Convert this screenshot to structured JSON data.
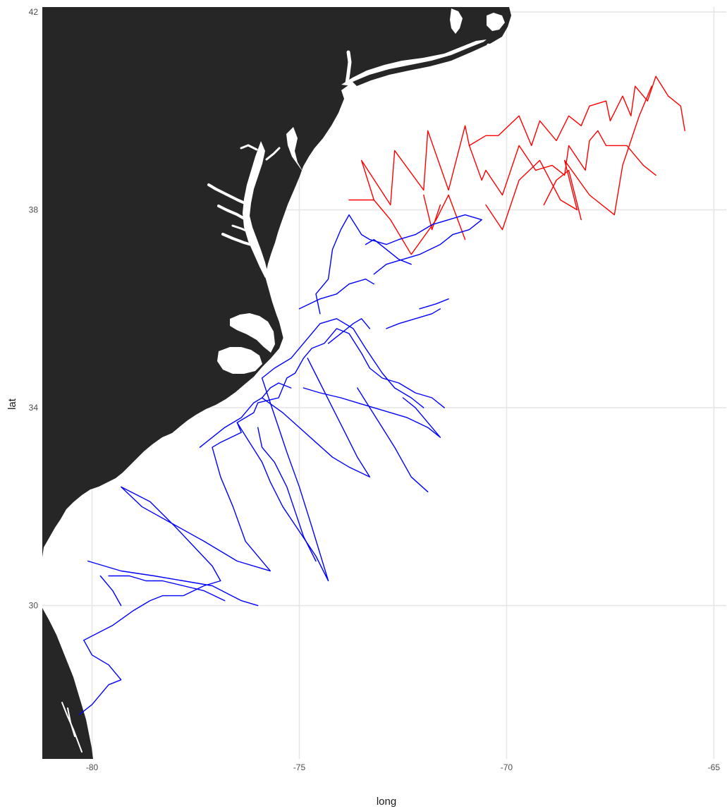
{
  "chart_data": {
    "type": "map",
    "xlabel": "long",
    "ylabel": "lat",
    "xlim": [
      -81.2,
      -64.7
    ],
    "ylim": [
      26.9,
      42.1
    ],
    "x_ticks": [
      -80,
      -75,
      -70,
      -65
    ],
    "y_ticks": [
      30,
      34,
      38,
      42
    ],
    "x_tick_labels": [
      "-80",
      "-75",
      "-70",
      "-65"
    ],
    "y_tick_labels": [
      "30",
      "34",
      "38",
      "42"
    ],
    "grid": true,
    "land_color": "#262626",
    "series": [
      {
        "color": "#ff0000",
        "segments": [
          [
            [
              -73.8,
              38.2
            ],
            [
              -73.2,
              38.2
            ],
            [
              -73.5,
              39.0
            ],
            [
              -72.8,
              38.1
            ],
            [
              -72.7,
              39.2
            ],
            [
              -72.0,
              38.4
            ],
            [
              -71.9,
              39.6
            ],
            [
              -71.4,
              38.4
            ],
            [
              -71.0,
              39.7
            ],
            [
              -70.9,
              39.3
            ],
            [
              -70.5,
              39.5
            ],
            [
              -70.2,
              39.5
            ],
            [
              -69.7,
              39.9
            ],
            [
              -69.4,
              39.3
            ],
            [
              -69.2,
              39.8
            ],
            [
              -68.8,
              39.4
            ],
            [
              -68.5,
              39.9
            ],
            [
              -68.2,
              39.7
            ],
            [
              -68.0,
              40.1
            ],
            [
              -67.6,
              40.2
            ],
            [
              -67.5,
              39.8
            ],
            [
              -67.2,
              40.3
            ],
            [
              -67.0,
              39.9
            ],
            [
              -66.9,
              40.5
            ],
            [
              -66.6,
              40.2
            ],
            [
              -66.4,
              40.7
            ],
            [
              -66.1,
              40.3
            ],
            [
              -65.8,
              40.1
            ],
            [
              -65.7,
              39.6
            ]
          ],
          [
            [
              -70.9,
              39.3
            ],
            [
              -70.6,
              38.6
            ],
            [
              -70.5,
              38.8
            ],
            [
              -70.1,
              38.3
            ],
            [
              -69.7,
              39.3
            ],
            [
              -69.3,
              38.8
            ],
            [
              -68.9,
              38.9
            ],
            [
              -68.6,
              38.7
            ],
            [
              -68.5,
              39.3
            ],
            [
              -68.1,
              38.8
            ],
            [
              -68.0,
              39.4
            ],
            [
              -67.8,
              39.6
            ],
            [
              -67.6,
              39.3
            ],
            [
              -67.1,
              39.3
            ],
            [
              -66.7,
              38.9
            ],
            [
              -66.4,
              38.7
            ]
          ],
          [
            [
              -73.2,
              38.2
            ],
            [
              -72.8,
              37.8
            ],
            [
              -72.3,
              37.1
            ],
            [
              -71.7,
              37.8
            ],
            [
              -71.4,
              38.3
            ],
            [
              -71.0,
              37.4
            ]
          ],
          [
            [
              -70.5,
              38.1
            ],
            [
              -70.1,
              37.6
            ],
            [
              -69.7,
              38.6
            ],
            [
              -69.2,
              39.0
            ],
            [
              -68.7,
              38.2
            ],
            [
              -68.3,
              38.0
            ],
            [
              -68.6,
              39.0
            ],
            [
              -68.0,
              38.3
            ],
            [
              -67.4,
              37.9
            ],
            [
              -67.2,
              38.9
            ],
            [
              -66.8,
              39.9
            ],
            [
              -66.5,
              40.5
            ]
          ],
          [
            [
              -72.0,
              38.3
            ],
            [
              -71.8,
              37.6
            ],
            [
              -71.6,
              38.1
            ]
          ],
          [
            [
              -69.1,
              38.1
            ],
            [
              -68.8,
              38.6
            ],
            [
              -68.5,
              38.8
            ],
            [
              -68.2,
              37.8
            ]
          ]
        ]
      },
      {
        "color": "#0000ff",
        "segments": [
          [
            [
              -80.3,
              27.8
            ],
            [
              -80.0,
              28.0
            ],
            [
              -79.6,
              28.4
            ],
            [
              -79.3,
              28.5
            ],
            [
              -79.6,
              28.8
            ],
            [
              -80.0,
              29.0
            ],
            [
              -80.2,
              29.3
            ],
            [
              -79.5,
              29.6
            ],
            [
              -79.0,
              29.9
            ],
            [
              -78.6,
              30.1
            ],
            [
              -78.3,
              30.2
            ],
            [
              -77.8,
              30.2
            ],
            [
              -77.3,
              30.4
            ],
            [
              -76.9,
              30.5
            ],
            [
              -77.1,
              30.8
            ],
            [
              -78.0,
              31.6
            ],
            [
              -78.6,
              32.1
            ],
            [
              -79.3,
              32.4
            ],
            [
              -78.8,
              32.0
            ],
            [
              -77.3,
              31.3
            ],
            [
              -76.5,
              30.9
            ],
            [
              -75.7,
              30.7
            ],
            [
              -76.3,
              31.3
            ],
            [
              -76.6,
              32.0
            ],
            [
              -76.9,
              32.6
            ],
            [
              -77.1,
              33.2
            ],
            [
              -76.9,
              33.3
            ],
            [
              -76.4,
              33.5
            ],
            [
              -76.5,
              33.7
            ],
            [
              -76.1,
              33.9
            ],
            [
              -76.0,
              34.1
            ],
            [
              -75.5,
              34.2
            ],
            [
              -75.3,
              34.6
            ],
            [
              -75.1,
              34.7
            ],
            [
              -74.9,
              35.0
            ],
            [
              -74.7,
              35.2
            ],
            [
              -74.4,
              35.3
            ],
            [
              -74.1,
              35.6
            ],
            [
              -73.8,
              35.5
            ],
            [
              -73.5,
              35.1
            ],
            [
              -73.3,
              34.8
            ],
            [
              -73.0,
              34.6
            ],
            [
              -72.6,
              34.5
            ],
            [
              -72.2,
              34.3
            ],
            [
              -71.8,
              34.2
            ],
            [
              -71.5,
              34.0
            ]
          ],
          [
            [
              -75.0,
              36.0
            ],
            [
              -74.5,
              36.2
            ],
            [
              -74.1,
              36.3
            ],
            [
              -73.8,
              36.5
            ],
            [
              -73.4,
              36.6
            ],
            [
              -73.2,
              36.5
            ]
          ],
          [
            [
              -74.5,
              35.9
            ],
            [
              -74.6,
              36.3
            ],
            [
              -74.3,
              36.6
            ],
            [
              -74.2,
              37.2
            ],
            [
              -74.0,
              37.6
            ],
            [
              -73.8,
              37.9
            ],
            [
              -73.5,
              37.5
            ],
            [
              -73.3,
              37.4
            ],
            [
              -72.9,
              37.3
            ],
            [
              -72.6,
              37.4
            ],
            [
              -72.2,
              37.5
            ],
            [
              -71.8,
              37.7
            ],
            [
              -71.4,
              37.8
            ],
            [
              -71.0,
              37.9
            ],
            [
              -70.6,
              37.8
            ],
            [
              -70.9,
              37.6
            ],
            [
              -71.3,
              37.5
            ],
            [
              -71.6,
              37.3
            ],
            [
              -72.1,
              37.1
            ],
            [
              -72.5,
              37.0
            ],
            [
              -72.9,
              36.9
            ],
            [
              -73.2,
              36.7
            ]
          ],
          [
            [
              -77.4,
              33.2
            ],
            [
              -76.8,
              33.6
            ],
            [
              -76.4,
              33.8
            ],
            [
              -76.1,
              34.1
            ],
            [
              -75.9,
              34.2
            ],
            [
              -75.7,
              34.4
            ],
            [
              -75.5,
              34.5
            ],
            [
              -75.2,
              34.4
            ]
          ],
          [
            [
              -76.5,
              33.7
            ],
            [
              -76.2,
              33.3
            ],
            [
              -75.9,
              32.9
            ],
            [
              -75.7,
              32.5
            ],
            [
              -75.4,
              32.0
            ],
            [
              -75.0,
              31.5
            ],
            [
              -74.6,
              31.0
            ],
            [
              -74.3,
              30.5
            ],
            [
              -74.7,
              31.6
            ],
            [
              -75.0,
              32.4
            ],
            [
              -75.3,
              33.1
            ],
            [
              -75.5,
              33.6
            ],
            [
              -75.7,
              34.1
            ],
            [
              -75.9,
              34.6
            ],
            [
              -75.6,
              34.8
            ],
            [
              -75.2,
              35.0
            ],
            [
              -74.8,
              35.4
            ],
            [
              -74.5,
              35.7
            ],
            [
              -74.1,
              35.8
            ],
            [
              -73.7,
              35.6
            ],
            [
              -73.4,
              35.2
            ],
            [
              -73.0,
              34.7
            ],
            [
              -72.7,
              34.4
            ],
            [
              -72.3,
              34.2
            ],
            [
              -72.0,
              34.0
            ]
          ],
          [
            [
              -79.6,
              30.6
            ],
            [
              -79.1,
              30.6
            ],
            [
              -78.7,
              30.5
            ],
            [
              -78.3,
              30.5
            ],
            [
              -77.8,
              30.4
            ],
            [
              -77.3,
              30.3
            ],
            [
              -76.8,
              30.1
            ]
          ],
          [
            [
              -80.1,
              30.9
            ],
            [
              -79.3,
              30.7
            ],
            [
              -78.5,
              30.6
            ],
            [
              -77.8,
              30.5
            ],
            [
              -77.1,
              30.4
            ],
            [
              -76.4,
              30.1
            ],
            [
              -76.0,
              30.0
            ]
          ],
          [
            [
              -79.8,
              30.6
            ],
            [
              -79.5,
              30.3
            ],
            [
              -79.3,
              30.0
            ]
          ],
          [
            [
              -73.6,
              34.4
            ],
            [
              -73.3,
              34.0
            ],
            [
              -73.0,
              33.6
            ],
            [
              -72.7,
              33.2
            ],
            [
              -72.3,
              32.6
            ],
            [
              -71.9,
              32.3
            ]
          ],
          [
            [
              -74.9,
              34.4
            ],
            [
              -74.5,
              34.3
            ],
            [
              -74.0,
              34.2
            ],
            [
              -73.6,
              34.1
            ],
            [
              -73.2,
              34.0
            ],
            [
              -72.8,
              33.9
            ],
            [
              -72.4,
              33.8
            ],
            [
              -71.9,
              33.6
            ],
            [
              -71.6,
              33.4
            ],
            [
              -71.9,
              33.7
            ],
            [
              -72.2,
              34.0
            ],
            [
              -72.5,
              34.2
            ]
          ],
          [
            [
              -75.9,
              34.2
            ],
            [
              -75.4,
              33.9
            ],
            [
              -75.0,
              33.6
            ],
            [
              -74.6,
              33.3
            ],
            [
              -74.2,
              33.0
            ],
            [
              -73.8,
              32.8
            ],
            [
              -73.3,
              32.6
            ],
            [
              -73.6,
              33.0
            ],
            [
              -73.9,
              33.5
            ],
            [
              -74.2,
              34.0
            ],
            [
              -74.5,
              34.5
            ],
            [
              -74.8,
              35.0
            ]
          ],
          [
            [
              -76.0,
              33.6
            ],
            [
              -75.9,
              33.2
            ],
            [
              -75.6,
              32.9
            ],
            [
              -75.3,
              32.4
            ],
            [
              -75.1,
              31.9
            ],
            [
              -74.9,
              31.4
            ],
            [
              -74.6,
              30.9
            ]
          ],
          [
            [
              -72.9,
              35.6
            ],
            [
              -72.6,
              35.7
            ],
            [
              -72.2,
              35.8
            ],
            [
              -71.8,
              35.9
            ],
            [
              -71.6,
              36.0
            ]
          ],
          [
            [
              -72.1,
              36.0
            ],
            [
              -71.7,
              36.1
            ],
            [
              -71.4,
              36.2
            ]
          ],
          [
            [
              -74.3,
              35.3
            ],
            [
              -74.0,
              35.5
            ],
            [
              -73.7,
              35.7
            ],
            [
              -73.5,
              35.8
            ],
            [
              -73.3,
              35.6
            ]
          ],
          [
            [
              -73.4,
              37.3
            ],
            [
              -73.2,
              37.4
            ],
            [
              -72.9,
              37.2
            ],
            [
              -72.6,
              37.0
            ],
            [
              -72.3,
              36.9
            ]
          ]
        ]
      }
    ]
  }
}
